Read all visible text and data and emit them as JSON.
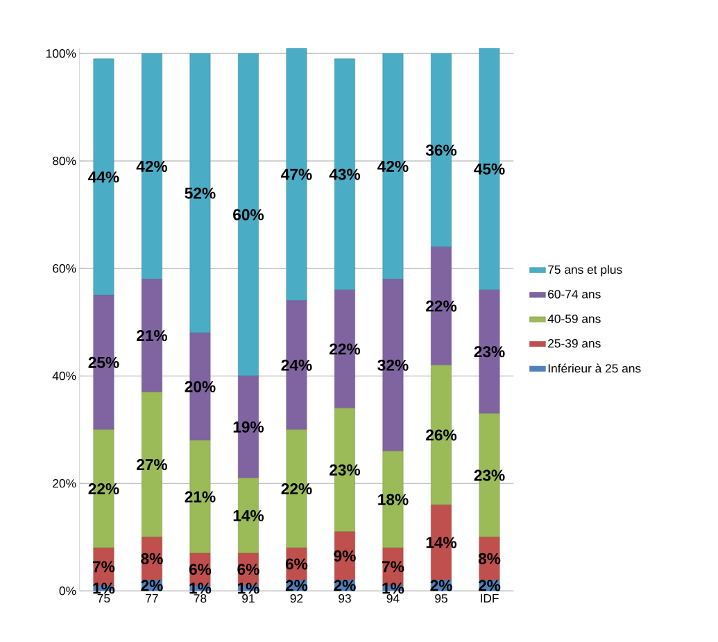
{
  "chart_data": {
    "type": "bar",
    "stacked": true,
    "categories": [
      "75",
      "77",
      "78",
      "91",
      "92",
      "93",
      "94",
      "95",
      "IDF"
    ],
    "series": [
      {
        "name": "Inférieur à 25 ans",
        "color": "#4f81bd",
        "values": [
          1,
          2,
          1,
          1,
          2,
          2,
          1,
          2,
          2
        ],
        "value_labels": [
          "1%",
          "2%",
          "1%",
          "1%",
          "2%",
          "2%",
          "1%",
          "2%",
          "2%"
        ]
      },
      {
        "name": "25-39 ans",
        "color": "#c0504d",
        "values": [
          7,
          8,
          6,
          6,
          6,
          9,
          7,
          14,
          8
        ],
        "value_labels": [
          "7%",
          "8%",
          "6%",
          "6%",
          "6%",
          "9%",
          "7%",
          "14%",
          "8%"
        ]
      },
      {
        "name": "40-59 ans",
        "color": "#9bbb59",
        "values": [
          22,
          27,
          21,
          14,
          22,
          23,
          18,
          26,
          23
        ],
        "value_labels": [
          "22%",
          "27%",
          "21%",
          "14%",
          "22%",
          "23%",
          "18%",
          "26%",
          "23%"
        ]
      },
      {
        "name": "60-74 ans",
        "color": "#8064a2",
        "values": [
          25,
          21,
          20,
          19,
          24,
          22,
          32,
          22,
          23
        ],
        "value_labels": [
          "25%",
          "21%",
          "20%",
          "19%",
          "24%",
          "22%",
          "32%",
          "22%",
          "23%"
        ]
      },
      {
        "name": "75 ans et plus",
        "color": "#4bacc6",
        "values": [
          44,
          42,
          52,
          60,
          47,
          43,
          42,
          36,
          45
        ],
        "value_labels": [
          "44%",
          "42%",
          "52%",
          "60%",
          "47%",
          "43%",
          "42%",
          "36%",
          "45%"
        ]
      }
    ],
    "ylim": [
      0,
      101
    ],
    "yticks": [
      {
        "value": 0,
        "label": "0%"
      },
      {
        "value": 20,
        "label": "20%"
      },
      {
        "value": 40,
        "label": "40%"
      },
      {
        "value": 60,
        "label": "60%"
      },
      {
        "value": 80,
        "label": "80%"
      },
      {
        "value": 100,
        "label": "100%"
      }
    ],
    "grid": "y",
    "legend": "right"
  }
}
